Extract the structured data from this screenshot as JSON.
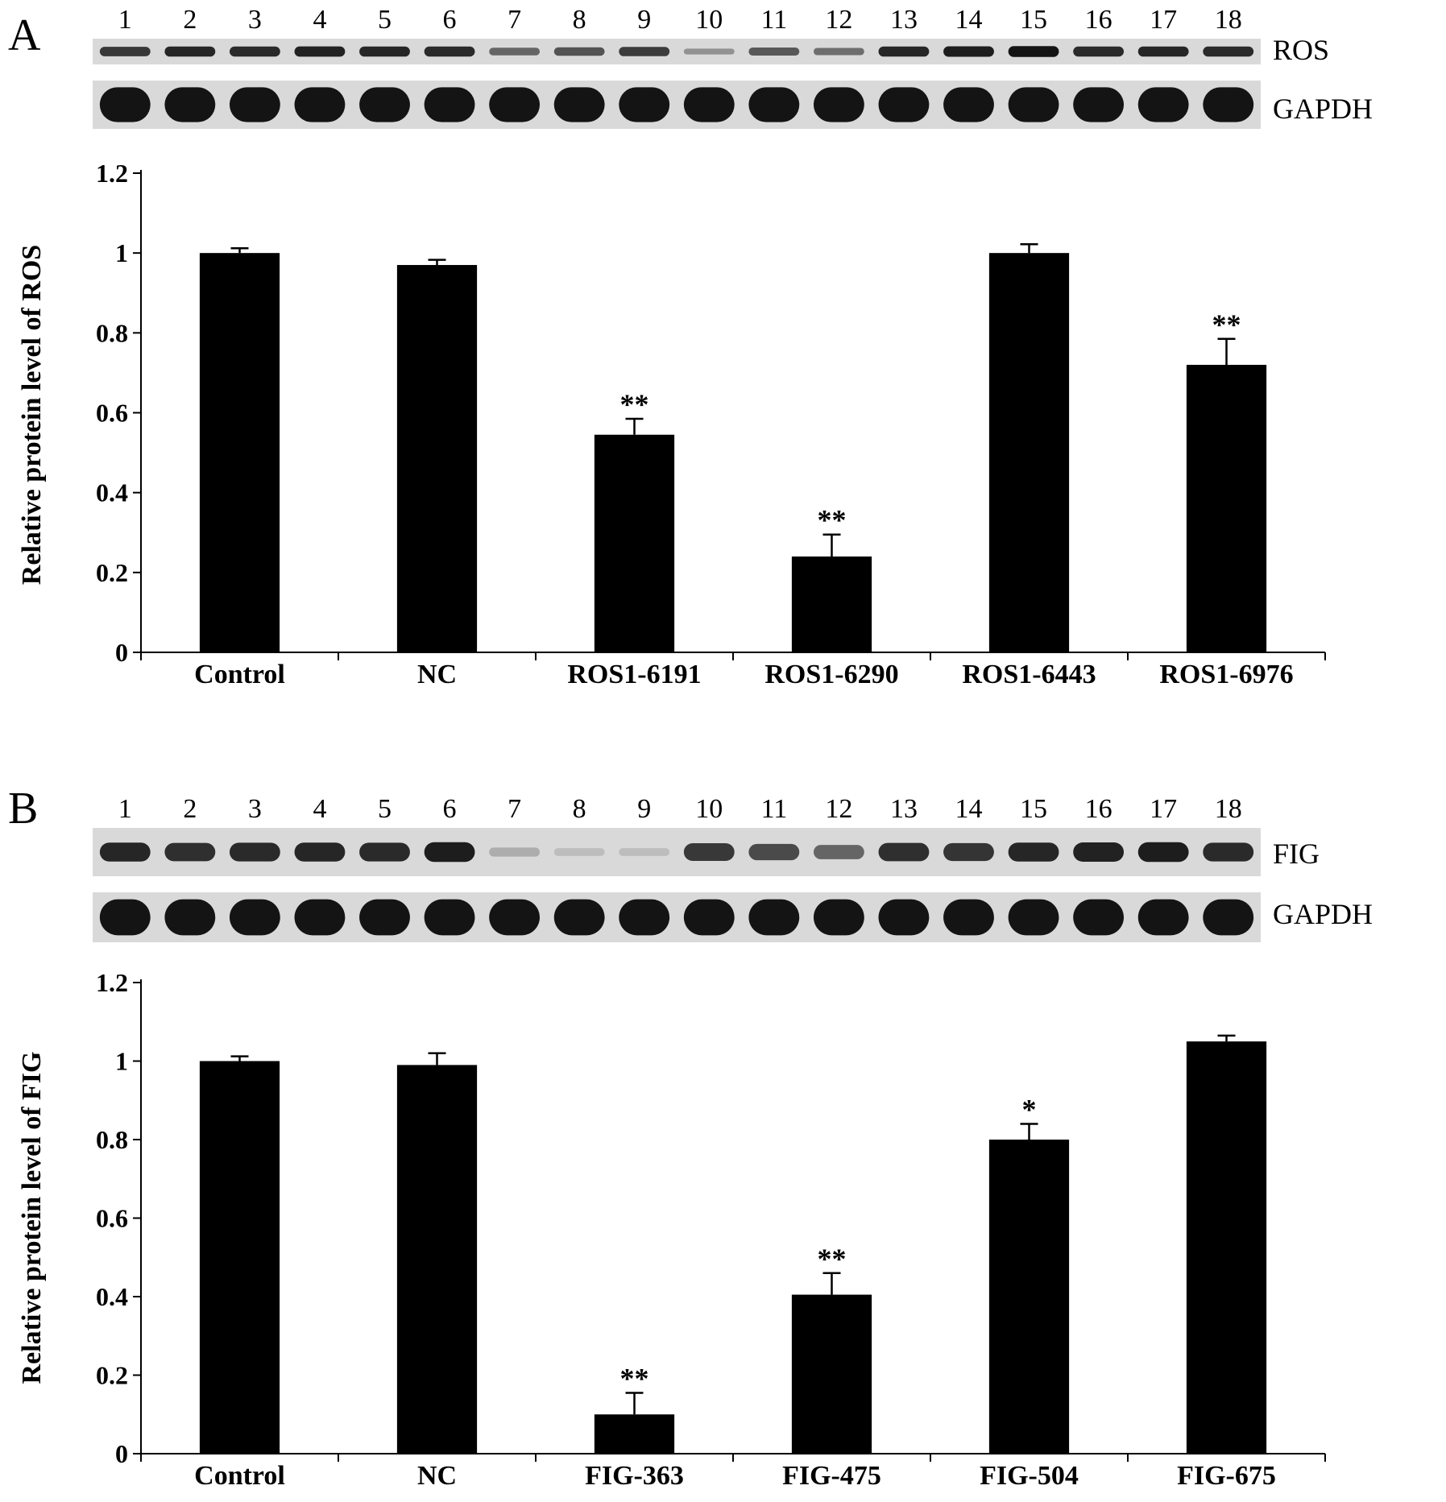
{
  "panels": [
    {
      "letter": "A",
      "lanes": [
        "1",
        "2",
        "3",
        "4",
        "5",
        "6",
        "7",
        "8",
        "9",
        "10",
        "11",
        "12",
        "13",
        "14",
        "15",
        "16",
        "17",
        "18"
      ],
      "blots": [
        {
          "label": "ROS",
          "intensity": [
            0.8,
            0.9,
            0.88,
            0.92,
            0.9,
            0.88,
            0.55,
            0.65,
            0.78,
            0.3,
            0.62,
            0.5,
            0.9,
            0.95,
            1.0,
            0.88,
            0.9,
            0.88
          ]
        },
        {
          "label": "GAPDH",
          "intensity": [
            1,
            1,
            1,
            1,
            1,
            1,
            1,
            1,
            1,
            1,
            1,
            1,
            1,
            1,
            1,
            1,
            1,
            1
          ]
        }
      ],
      "chart_data": {
        "type": "bar",
        "categories": [
          "Control",
          "NC",
          "ROS1-6191",
          "ROS1-6290",
          "ROS1-6443",
          "ROS1-6976"
        ],
        "values": [
          1.0,
          0.97,
          0.545,
          0.24,
          1.0,
          0.72
        ],
        "errors": [
          0.012,
          0.013,
          0.04,
          0.055,
          0.022,
          0.065
        ],
        "significance": [
          "",
          "",
          "**",
          "**",
          "",
          "**"
        ],
        "ylabel": "Relative protein level of ROS",
        "ylim": [
          0,
          1.2
        ],
        "yticks": [
          0,
          0.2,
          0.4,
          0.6,
          0.8,
          1,
          1.2
        ],
        "ytick_labels": [
          "0",
          "0.2",
          "0.4",
          "0.6",
          "0.8",
          "1",
          "1.2"
        ]
      }
    },
    {
      "letter": "B",
      "lanes": [
        "1",
        "2",
        "3",
        "4",
        "5",
        "6",
        "7",
        "8",
        "9",
        "10",
        "11",
        "12",
        "13",
        "14",
        "15",
        "16",
        "17",
        "18"
      ],
      "blots": [
        {
          "label": "FIG",
          "intensity": [
            0.9,
            0.85,
            0.88,
            0.9,
            0.88,
            0.95,
            0.15,
            0.06,
            0.06,
            0.8,
            0.7,
            0.55,
            0.85,
            0.82,
            0.9,
            0.92,
            0.95,
            0.88
          ]
        },
        {
          "label": "GAPDH",
          "intensity": [
            1,
            1,
            1,
            1,
            1,
            1,
            1,
            1,
            1,
            1,
            1,
            1,
            1,
            1,
            1,
            1,
            1,
            1
          ]
        }
      ],
      "chart_data": {
        "type": "bar",
        "categories": [
          "Control",
          "NC",
          "FIG-363",
          "FIG-475",
          "FIG-504",
          "FIG-675"
        ],
        "values": [
          1.0,
          0.99,
          0.1,
          0.405,
          0.8,
          1.05
        ],
        "errors": [
          0.012,
          0.03,
          0.055,
          0.055,
          0.04,
          0.015
        ],
        "significance": [
          "",
          "",
          "**",
          "**",
          "*",
          ""
        ],
        "ylabel": "Relative protein level of FIG",
        "ylim": [
          0,
          1.2
        ],
        "yticks": [
          0,
          0.2,
          0.4,
          0.6,
          0.8,
          1,
          1.2
        ],
        "ytick_labels": [
          "0",
          "0.2",
          "0.4",
          "0.6",
          "0.8",
          "1",
          "1.2"
        ]
      }
    }
  ]
}
